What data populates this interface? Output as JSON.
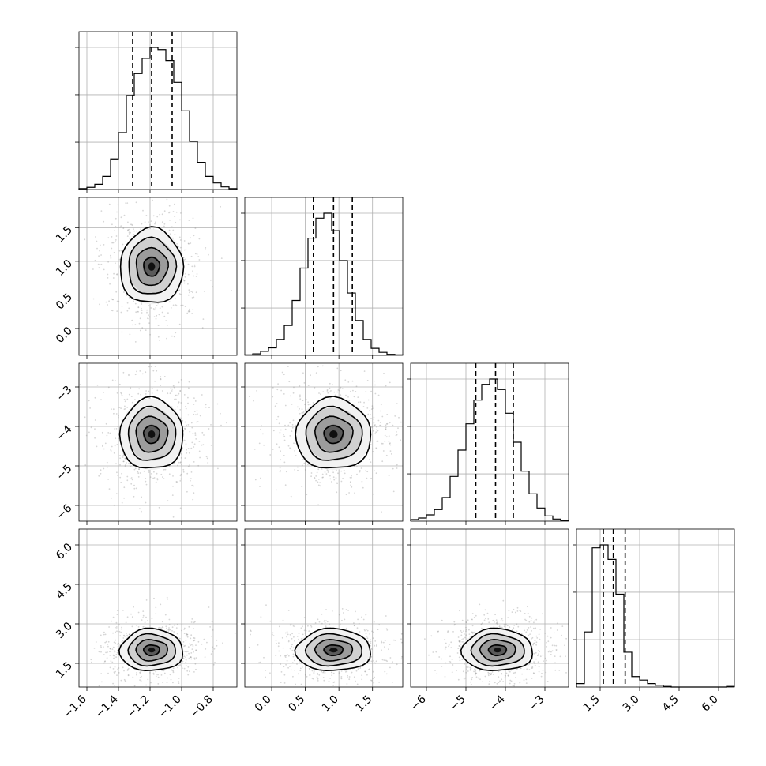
{
  "chart_data": {
    "type": "corner",
    "grid": true,
    "variables": [
      {
        "range": [
          -1.65,
          -0.65
        ],
        "ticks": [
          -1.6,
          -1.4,
          -1.2,
          -1.0,
          -0.8
        ],
        "tick_labels": [
          "−1.6",
          "−1.4",
          "−1.2",
          "−1.0",
          "−0.8"
        ],
        "quantiles": [
          -1.31,
          -1.19,
          -1.06
        ],
        "mean": -1.19,
        "sd": 0.1
      },
      {
        "range": [
          -0.4,
          1.95
        ],
        "ticks": [
          0.0,
          0.5,
          1.0,
          1.5
        ],
        "tick_labels": [
          "0.0",
          "0.5",
          "1.0",
          "1.5"
        ],
        "quantiles": [
          0.62,
          0.92,
          1.2
        ],
        "mean": 0.92,
        "sd": 0.28
      },
      {
        "range": [
          -6.4,
          -2.4
        ],
        "ticks": [
          -6,
          -5,
          -4,
          -3
        ],
        "tick_labels": [
          "−6",
          "−5",
          "−4",
          "−3"
        ],
        "quantiles": [
          -4.75,
          -4.25,
          -3.8
        ],
        "mean": -4.2,
        "sd": 0.45
      },
      {
        "range": [
          0.6,
          6.6
        ],
        "ticks": [
          1.5,
          3.0,
          4.5,
          6.0
        ],
        "tick_labels": [
          "1.5",
          "3.0",
          "4.5",
          "6.0"
        ],
        "quantiles": [
          1.62,
          2.0,
          2.45
        ],
        "mean": 2.0,
        "sd": 0.4
      }
    ],
    "histograms": [
      {
        "counts": [
          2,
          5,
          12,
          30,
          70,
          130,
          215,
          265,
          300,
          325,
          320,
          295,
          245,
          180,
          110,
          62,
          30,
          15,
          6,
          2
        ]
      },
      {
        "counts": [
          1,
          3,
          8,
          15,
          32,
          60,
          110,
          175,
          235,
          275,
          285,
          250,
          190,
          125,
          70,
          32,
          14,
          6,
          2,
          1
        ]
      },
      {
        "counts": [
          3,
          6,
          12,
          22,
          45,
          85,
          135,
          185,
          230,
          260,
          270,
          250,
          205,
          150,
          95,
          52,
          25,
          10,
          4,
          1
        ]
      },
      {
        "counts": [
          6,
          95,
          240,
          245,
          220,
          160,
          60,
          18,
          12,
          6,
          3,
          1,
          0,
          0,
          0,
          0,
          0,
          0,
          0,
          1
        ]
      }
    ]
  }
}
